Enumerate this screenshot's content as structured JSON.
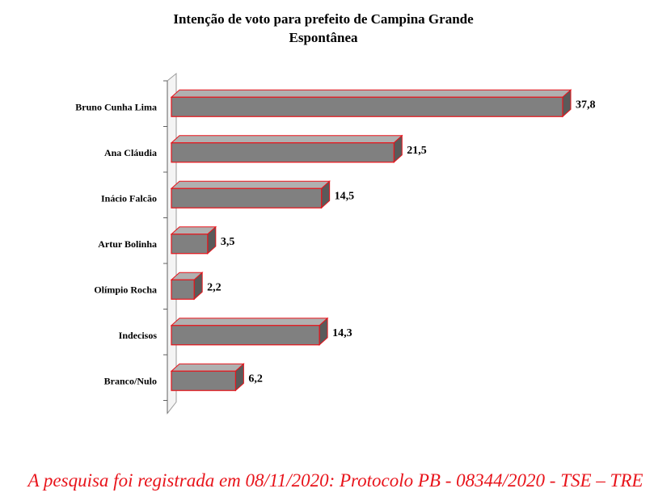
{
  "chart_data": {
    "type": "bar",
    "orientation": "horizontal",
    "title": "Intenção de voto para prefeito de Campina Grande",
    "subtitle": "Espontânea",
    "categories": [
      "Bruno Cunha Lima",
      "Ana Cláudia",
      "Inácio Falcão",
      "Artur Bolinha",
      "Olímpio Rocha",
      "Indecisos",
      "Branco/Nulo"
    ],
    "values": [
      37.8,
      21.5,
      14.5,
      3.5,
      2.2,
      14.3,
      6.2
    ],
    "value_labels": [
      "37,8",
      "21,5",
      "14,5",
      "3,5",
      "2,2",
      "14,3",
      "6,2"
    ],
    "xlim": [
      0,
      37.8
    ],
    "grid": false,
    "bar_fill": "#808080",
    "bar_outline": "#e8141b"
  },
  "footer": "A pesquisa foi registrada em 08/11/2020: Protocolo PB - 08344/2020 - TSE – TRE"
}
